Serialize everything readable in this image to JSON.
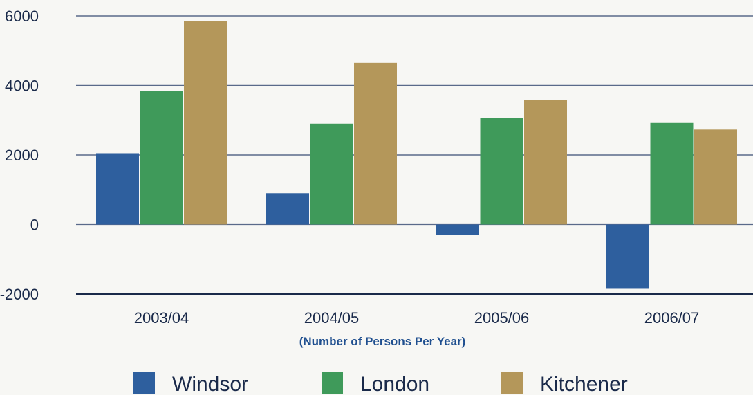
{
  "chart_data": {
    "type": "bar",
    "categories": [
      "2003/04",
      "2004/05",
      "2005/06",
      "2006/07"
    ],
    "series": [
      {
        "name": "Windsor",
        "values": [
          2050,
          900,
          -300,
          -1850
        ],
        "color": "#2e5f9e"
      },
      {
        "name": "London",
        "values": [
          3850,
          2900,
          3070,
          2920
        ],
        "color": "#3f9a5a"
      },
      {
        "name": "Kitchener",
        "values": [
          5850,
          4650,
          3580,
          2730
        ],
        "color": "#b4975a"
      }
    ],
    "title": "",
    "xlabel": "(Number of Persons Per Year)",
    "ylabel": "",
    "ylim": [
      -2000,
      6000
    ],
    "yticks": [
      6000,
      4000,
      2000,
      0,
      -2000
    ],
    "grid": true,
    "legend_position": "bottom"
  }
}
